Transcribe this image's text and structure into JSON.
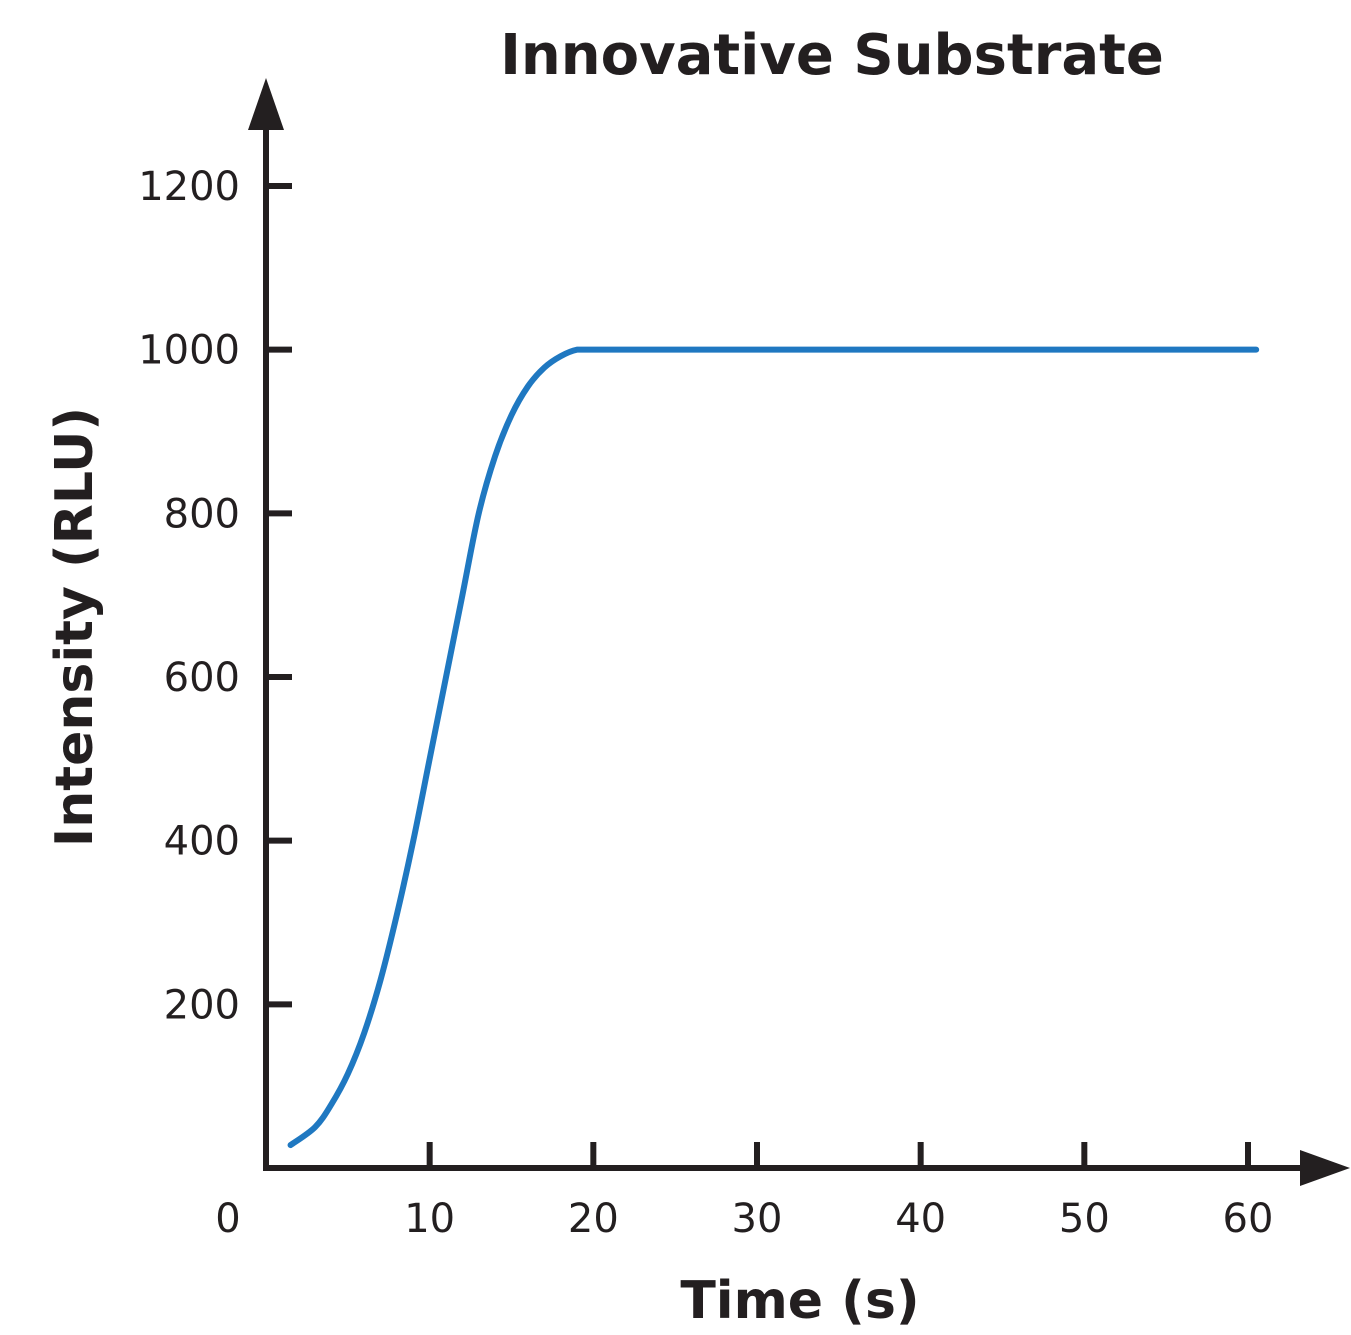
{
  "chart_data": {
    "type": "line",
    "title": "Innovative Substrate",
    "xlabel": "Time (s)",
    "ylabel": "Intensity (RLU)",
    "xlim": [
      0,
      60
    ],
    "ylim": [
      0,
      1200
    ],
    "x_ticks": [
      0,
      10,
      20,
      30,
      40,
      50,
      60
    ],
    "x_tick_labels": [
      "0",
      "10",
      "20",
      "30",
      "40",
      "50",
      "60"
    ],
    "y_ticks": [
      200,
      400,
      600,
      800,
      1000,
      1200
    ],
    "y_tick_labels": [
      "200",
      "400",
      "600",
      "800",
      "1000",
      "1200"
    ],
    "grid": false,
    "series": [
      {
        "color": "#1f78c1",
        "x": [
          1.5,
          3,
          4,
          5,
          6,
          7,
          8,
          9,
          10,
          11,
          12,
          13,
          14,
          15,
          16,
          17,
          18,
          19,
          20,
          25,
          30,
          35,
          40,
          45,
          50,
          55,
          60.5
        ],
        "y": [
          28,
          50,
          78,
          115,
          165,
          230,
          310,
          400,
          500,
          600,
          700,
          800,
          870,
          920,
          955,
          978,
          992,
          1000,
          1000,
          1000,
          1000,
          1000,
          1000,
          1000,
          1000,
          1000,
          1000
        ]
      }
    ]
  }
}
